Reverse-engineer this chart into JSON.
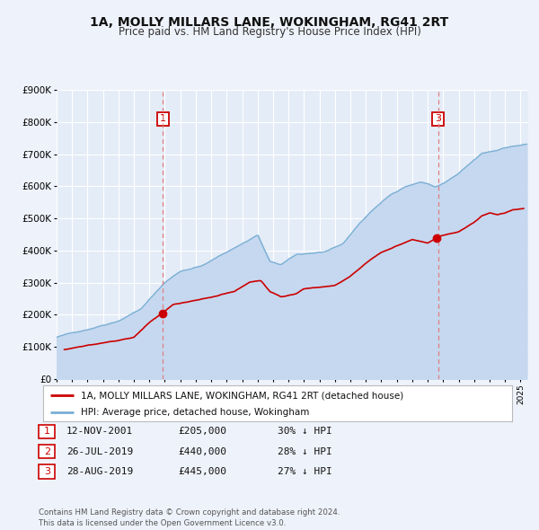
{
  "title": "1A, MOLLY MILLARS LANE, WOKINGHAM, RG41 2RT",
  "subtitle": "Price paid vs. HM Land Registry's House Price Index (HPI)",
  "ylim": [
    0,
    900000
  ],
  "xlim_start": 1995.0,
  "xlim_end": 2025.5,
  "bg_color": "#eef2fa",
  "plot_bg_color": "#e4ecf7",
  "grid_color": "#ffffff",
  "red_line_color": "#cc0000",
  "blue_line_color": "#7aafd4",
  "blue_fill_color": "#c5d8ef",
  "dashed_line_color": "#e08080",
  "legend_label_red": "1A, MOLLY MILLARS LANE, WOKINGHAM, RG41 2RT (detached house)",
  "legend_label_blue": "HPI: Average price, detached house, Wokingham",
  "sale1_year": 2001.87,
  "sale1_value": 205000,
  "sale2_year": 2019.57,
  "sale2_value": 440000,
  "sale3_year": 2019.67,
  "sale3_value": 445000,
  "table_rows": [
    [
      "1",
      "12-NOV-2001",
      "£205,000",
      "30% ↓ HPI"
    ],
    [
      "2",
      "26-JUL-2019",
      "£440,000",
      "28% ↓ HPI"
    ],
    [
      "3",
      "28-AUG-2019",
      "£445,000",
      "27% ↓ HPI"
    ]
  ],
  "footer": "Contains HM Land Registry data © Crown copyright and database right 2024.\nThis data is licensed under the Open Government Licence v3.0.",
  "ytick_labels": [
    "£0",
    "£100K",
    "£200K",
    "£300K",
    "£400K",
    "£500K",
    "£600K",
    "£700K",
    "£800K",
    "£900K"
  ],
  "ytick_values": [
    0,
    100000,
    200000,
    300000,
    400000,
    500000,
    600000,
    700000,
    800000,
    900000
  ]
}
